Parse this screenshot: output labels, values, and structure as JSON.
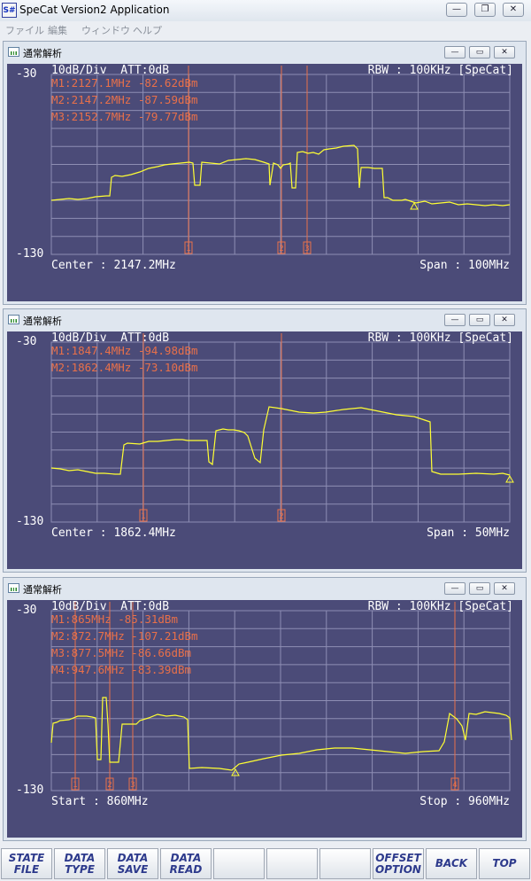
{
  "window": {
    "title": "SpeCat Version2 Application",
    "icon_text": "S#",
    "min": "—",
    "restore": "❐",
    "close": "✕"
  },
  "menu": [
    "ファイル",
    "編集",
    "ウィンドウ",
    "ヘルプ"
  ],
  "panels": [
    {
      "title": "通常解析",
      "header_left": "10dB/Div  ATT:0dB",
      "header_right": "RBW : 100KHz [SpeCat]",
      "ref_top": "-30",
      "ref_bottom": "-130",
      "footer_left": "Center : 2147.2MHz",
      "footer_right": "Span : 100MHz",
      "markers": [
        "M1:2127.1MHz -82.62dBm",
        "M2:2147.2MHz -87.59dBm",
        "M3:2152.7MHz -79.77dBm"
      ],
      "marker_labels": [
        "1",
        "2",
        "3"
      ]
    },
    {
      "title": "通常解析",
      "header_left": "10dB/Div  ATT:0dB",
      "header_right": "RBW : 100KHz [SpeCat]",
      "ref_top": "-30",
      "ref_bottom": "-130",
      "footer_left": "Center : 1862.4MHz",
      "footer_right": "Span : 50MHz",
      "markers": [
        "M1:1847.4MHz -94.98dBm",
        "M2:1862.4MHz -73.10dBm"
      ],
      "marker_labels": [
        "1",
        "2"
      ]
    },
    {
      "title": "通常解析",
      "header_left": "10dB/Div  ATT:0dB",
      "header_right": "RBW : 100KHz [SpeCat]",
      "ref_top": "-30",
      "ref_bottom": "-130",
      "footer_left": "Start : 860MHz",
      "footer_right": "Stop : 960MHz",
      "markers": [
        "M1:865MHz -85.31dBm",
        "M2:872.7MHz -107.21dBm",
        "M3:877.5MHz -86.66dBm",
        "M4:947.6MHz -83.39dBm"
      ],
      "marker_labels": [
        "1",
        "2",
        "3",
        "4"
      ]
    }
  ],
  "toolbar": [
    {
      "l1": "STATE",
      "l2": "FILE"
    },
    {
      "l1": "DATA",
      "l2": "TYPE"
    },
    {
      "l1": "DATA",
      "l2": "SAVE"
    },
    {
      "l1": "DATA",
      "l2": "READ"
    },
    {
      "l1": "",
      "l2": ""
    },
    {
      "l1": "",
      "l2": ""
    },
    {
      "l1": "",
      "l2": ""
    },
    {
      "l1": "OFFSET",
      "l2": "OPTION"
    },
    {
      "l1": "BACK",
      "l2": ""
    },
    {
      "l1": "TOP",
      "l2": ""
    }
  ],
  "colors": {
    "screen_bg": "#4b4b78",
    "grid": "#8e8eb4",
    "trace": "#ffff33",
    "marker": "#e8704a",
    "text": "#ffffff"
  }
}
